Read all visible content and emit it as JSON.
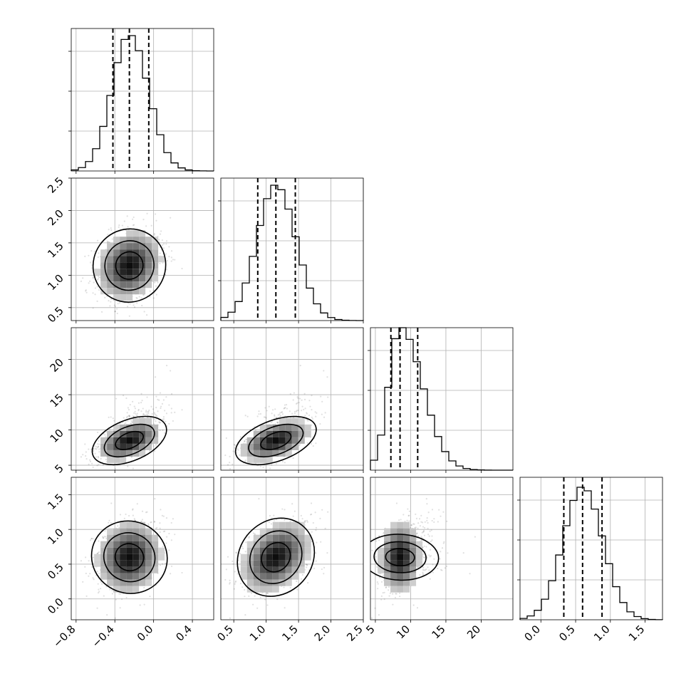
{
  "figure": {
    "type": "corner_plot",
    "parameter_count": 4,
    "histogram_bins": 20,
    "scatter_points_per_panel": 700
  },
  "chart_data": [
    {
      "type": "corner",
      "parameters": [
        {
          "index": 0,
          "range": [
            -0.85,
            0.62
          ],
          "ticks": [
            -0.8,
            -0.4,
            0.0,
            0.4
          ],
          "tick_labels": [
            "−0.8",
            "−0.4",
            "0.0",
            "0.4"
          ],
          "quantiles": [
            -0.42,
            -0.25,
            -0.05
          ],
          "median": -0.25,
          "sd": 0.18,
          "skew": 0.25
        },
        {
          "index": 1,
          "range": [
            0.3,
            2.5
          ],
          "ticks": [
            0.5,
            1.0,
            1.5,
            2.0,
            2.5
          ],
          "tick_labels": [
            "0.5",
            "1.0",
            "1.5",
            "2.0",
            "2.5"
          ],
          "quantiles": [
            0.87,
            1.15,
            1.45
          ],
          "median": 1.15,
          "sd": 0.29,
          "skew": 0.2
        },
        {
          "index": 2,
          "range": [
            4.3,
            24.5
          ],
          "ticks": [
            5,
            10,
            15,
            20
          ],
          "tick_labels": [
            "5",
            "10",
            "15",
            "20"
          ],
          "quantiles": [
            7.2,
            8.5,
            11.0
          ],
          "median": 8.5,
          "sd": 1.6,
          "skew": 2.8
        },
        {
          "index": 3,
          "range": [
            -0.3,
            1.75
          ],
          "ticks": [
            0.0,
            0.5,
            1.0,
            1.5
          ],
          "tick_labels": [
            "0.0",
            "0.5",
            "1.0",
            "1.5"
          ],
          "quantiles": [
            0.33,
            0.6,
            0.88
          ],
          "median": 0.6,
          "sd": 0.28,
          "skew": 0.1
        }
      ],
      "correlations": [
        [
          1.0,
          0.2,
          0.45,
          0.1
        ],
        [
          0.2,
          1.0,
          0.45,
          0.35
        ],
        [
          0.45,
          0.45,
          1.0,
          0.05
        ],
        [
          0.1,
          0.35,
          0.05,
          1.0
        ]
      ],
      "hist_max_counts": [
        0.95,
        0.95,
        1.0,
        0.93
      ],
      "grid": true,
      "contour_levels": [
        0.39,
        0.86,
        0.99
      ],
      "title": "",
      "xlabel": "",
      "ylabel": ""
    }
  ]
}
